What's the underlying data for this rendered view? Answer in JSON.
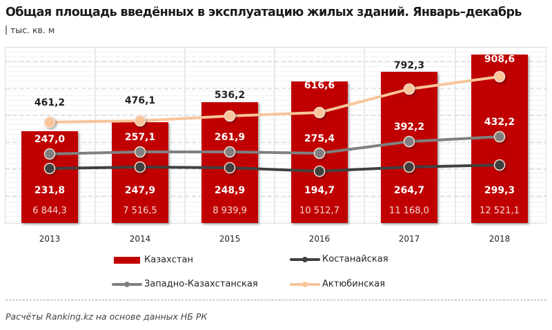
{
  "header": {
    "title": "Общая площадь введённых в эксплуатацию жилых зданий. Январь–декабрь",
    "unit": "тыс. кв. м"
  },
  "footer": {
    "source": "Расчёты Ranking.kz на основе данных НБ РК"
  },
  "colors": {
    "kazakhstan": "#c00000",
    "kostanay": "#404040",
    "west_kazakhstan": "#808080",
    "aktobe": "#f8c49a"
  },
  "legend": [
    {
      "label": "Казахстан",
      "type": "bar"
    },
    {
      "label": "Костанайская",
      "type": "line"
    },
    {
      "label": "Западно-Казахстанская",
      "type": "line"
    },
    {
      "label": "Актюбинская",
      "type": "line"
    }
  ],
  "chart_data": {
    "type": "bar+line",
    "title": "Общая площадь введённых в эксплуатацию жилых зданий. Январь–декабрь",
    "subtitle": "тыс. кв. м",
    "categories": [
      "2013",
      "2014",
      "2015",
      "2016",
      "2017",
      "2018"
    ],
    "series": [
      {
        "name": "Казахстан",
        "type": "bar",
        "axis": "secondary",
        "values": [
          6844.3,
          7516.5,
          8939.9,
          10512.7,
          11168.0,
          12521.1
        ],
        "labels": [
          "6 844,3",
          "7 516,5",
          "8 939,9",
          "10 512,7",
          "11 168,0",
          "12 521,1"
        ]
      },
      {
        "name": "Костанайская",
        "type": "line",
        "values": [
          231.8,
          247.9,
          248.9,
          194.7,
          264.7,
          299.3
        ],
        "labels": [
          "231,8",
          "247,9",
          "248,9",
          "194,7",
          "264,7",
          "299,3"
        ]
      },
      {
        "name": "Западно-Казахстанская",
        "type": "line",
        "values": [
          247.0,
          257.1,
          261.9,
          275.4,
          392.2,
          432.2
        ],
        "labels": [
          "247,0",
          "257,1",
          "261,9",
          "275,4",
          "392,2",
          "432,2"
        ]
      },
      {
        "name": "Актюбинская",
        "type": "line",
        "values": [
          461.2,
          476.1,
          536.2,
          616.6,
          792.3,
          908.6
        ],
        "labels": [
          "461,2",
          "476,1",
          "536,2",
          "616,6",
          "792,3",
          "908,6"
        ]
      }
    ],
    "xlabel": "",
    "ylabel": "",
    "grid": true,
    "axes_visible": false,
    "legend_position": "bottom"
  },
  "layout": {
    "bars": [
      {
        "x": 31,
        "top": 190
      },
      {
        "x": 162,
        "top": 177
      },
      {
        "x": 292,
        "top": 148
      },
      {
        "x": 422,
        "top": 118
      },
      {
        "x": 552,
        "top": 104
      },
      {
        "x": 683,
        "top": 79
      }
    ],
    "aktobe_y": [
      177,
      175,
      168,
      163,
      129,
      111
    ],
    "west_y": [
      223,
      220,
      220,
      222,
      205,
      198
    ],
    "kost_y": [
      244,
      242,
      243,
      248,
      242,
      239
    ]
  }
}
